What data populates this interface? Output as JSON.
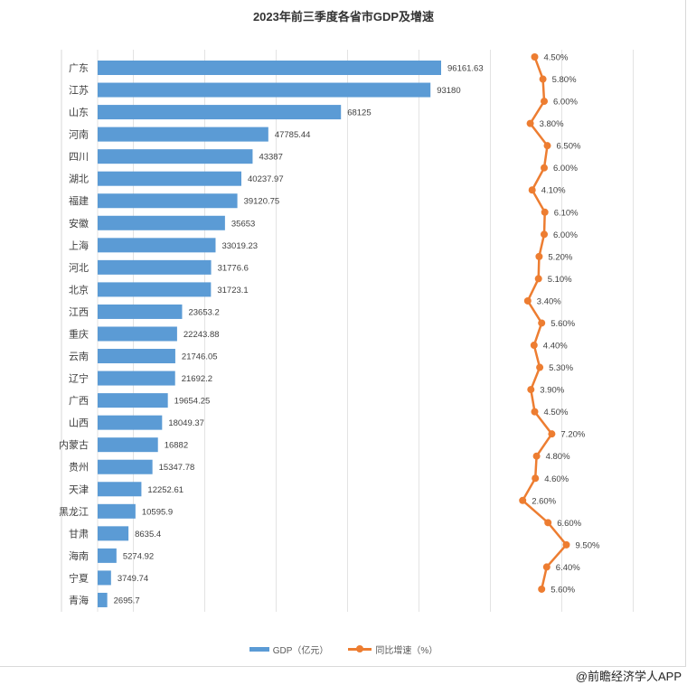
{
  "chart_data": {
    "type": "bar",
    "title": "2023年前三季度各省市GDP及增速",
    "categories": [
      "广东",
      "江苏",
      "山东",
      "河南",
      "四川",
      "湖北",
      "福建",
      "安徽",
      "上海",
      "河北",
      "北京",
      "江西",
      "重庆",
      "云南",
      "辽宁",
      "广西",
      "山西",
      "内蒙古",
      "贵州",
      "天津",
      "黑龙江",
      "甘肃",
      "海南",
      "宁夏",
      "青海"
    ],
    "series": [
      {
        "name": "GDP（亿元）",
        "type": "bar",
        "color": "#5b9bd5",
        "values": [
          96161.63,
          93180,
          68125,
          47785.44,
          43387,
          40237.97,
          39120.75,
          35653,
          33019.23,
          31776.6,
          31723.1,
          23653.2,
          22243.88,
          21746.05,
          21692.2,
          19654.25,
          18049.37,
          16882,
          15347.78,
          12252.61,
          10595.9,
          8635.4,
          5274.92,
          3749.74,
          2695.7
        ],
        "labels": [
          "96161.63",
          "93180",
          "68125",
          "47785.44",
          "43387",
          "40237.97",
          "39120.75",
          "35653",
          "33019.23",
          "31776.6",
          "31723.1",
          "23653.2",
          "22243.88",
          "21746.05",
          "21692.2",
          "19654.25",
          "18049.37",
          "16882",
          "15347.78",
          "12252.61",
          "10595.9",
          "8635.4",
          "5274.92",
          "3749.74",
          "2695.7"
        ]
      },
      {
        "name": "同比增速（%）",
        "type": "line",
        "color": "#ed7d31",
        "values": [
          4.5,
          5.8,
          6.0,
          3.8,
          6.5,
          6.0,
          4.1,
          6.1,
          6.0,
          5.2,
          5.1,
          3.4,
          5.6,
          4.4,
          5.3,
          3.9,
          4.5,
          7.2,
          4.8,
          4.6,
          2.6,
          6.6,
          9.5,
          6.4,
          5.6
        ],
        "labels": [
          "4.50%",
          "5.80%",
          "6.00%",
          "3.80%",
          "6.50%",
          "6.00%",
          "4.10%",
          "6.10%",
          "6.00%",
          "5.20%",
          "5.10%",
          "3.40%",
          "5.60%",
          "4.40%",
          "5.30%",
          "3.90%",
          "4.50%",
          "7.20%",
          "4.80%",
          "4.60%",
          "2.60%",
          "6.60%",
          "9.50%",
          "6.40%",
          "5.60%"
        ]
      }
    ],
    "xlabel": "",
    "ylabel": "",
    "grid": true,
    "legend": "bottom"
  },
  "watermark": "@前瞻经济学人APP"
}
